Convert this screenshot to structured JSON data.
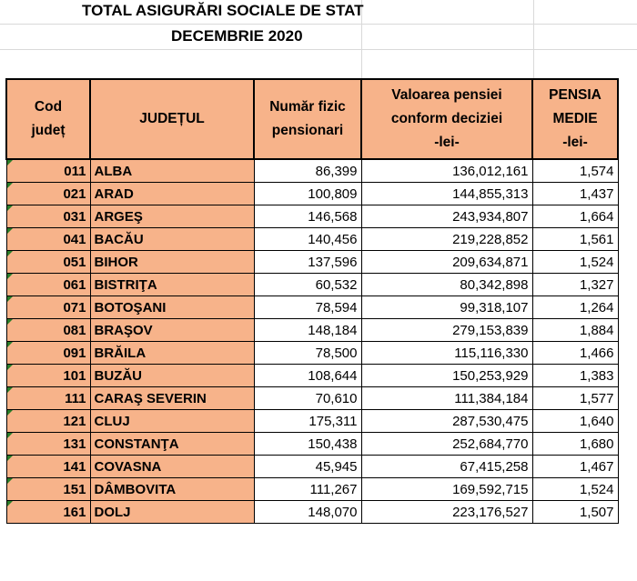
{
  "title": "TOTAL ASIGURĂRI SOCIALE DE STAT",
  "subtitle": "DECEMBRIE 2020",
  "headers": {
    "code": [
      "Cod",
      "județ"
    ],
    "county": "JUDEȚUL",
    "pensioners": [
      "Număr fizic",
      "pensionari"
    ],
    "value": [
      "Valoarea pensiei",
      "conform deciziei",
      "-lei-"
    ],
    "average": [
      "PENSIA",
      "MEDIE",
      "-lei-"
    ]
  },
  "rows": [
    {
      "code": "011",
      "county": "ALBA",
      "pensioners": "86,399",
      "value": "136,012,161",
      "average": "1,574"
    },
    {
      "code": "021",
      "county": "ARAD",
      "pensioners": "100,809",
      "value": "144,855,313",
      "average": "1,437"
    },
    {
      "code": "031",
      "county": "ARGEŞ",
      "pensioners": "146,568",
      "value": "243,934,807",
      "average": "1,664"
    },
    {
      "code": "041",
      "county": "BACĂU",
      "pensioners": "140,456",
      "value": "219,228,852",
      "average": "1,561"
    },
    {
      "code": "051",
      "county": "BIHOR",
      "pensioners": "137,596",
      "value": "209,634,871",
      "average": "1,524"
    },
    {
      "code": "061",
      "county": "BISTRIŢA",
      "pensioners": "60,532",
      "value": "80,342,898",
      "average": "1,327"
    },
    {
      "code": "071",
      "county": "BOTOŞANI",
      "pensioners": "78,594",
      "value": "99,318,107",
      "average": "1,264"
    },
    {
      "code": "081",
      "county": "BRAŞOV",
      "pensioners": "148,184",
      "value": "279,153,839",
      "average": "1,884"
    },
    {
      "code": "091",
      "county": "BRĂILA",
      "pensioners": "78,500",
      "value": "115,116,330",
      "average": "1,466"
    },
    {
      "code": "101",
      "county": "BUZĂU",
      "pensioners": "108,644",
      "value": "150,253,929",
      "average": "1,383"
    },
    {
      "code": "111",
      "county": "CARAŞ SEVERIN",
      "pensioners": "70,610",
      "value": "111,384,184",
      "average": "1,577"
    },
    {
      "code": "121",
      "county": "CLUJ",
      "pensioners": "175,311",
      "value": "287,530,475",
      "average": "1,640"
    },
    {
      "code": "131",
      "county": "CONSTANŢA",
      "pensioners": "150,438",
      "value": "252,684,770",
      "average": "1,680"
    },
    {
      "code": "141",
      "county": "COVASNA",
      "pensioners": "45,945",
      "value": "67,415,258",
      "average": "1,467"
    },
    {
      "code": "151",
      "county": "DÂMBOVITA",
      "pensioners": "111,267",
      "value": "169,592,715",
      "average": "1,524"
    },
    {
      "code": "161",
      "county": "DOLJ",
      "pensioners": "148,070",
      "value": "223,176,527",
      "average": "1,507"
    }
  ],
  "colors": {
    "header_fill": "#f7b38a",
    "border": "#000000",
    "grid": "#d9d9d9",
    "error_tick": "#2a7d2a"
  }
}
